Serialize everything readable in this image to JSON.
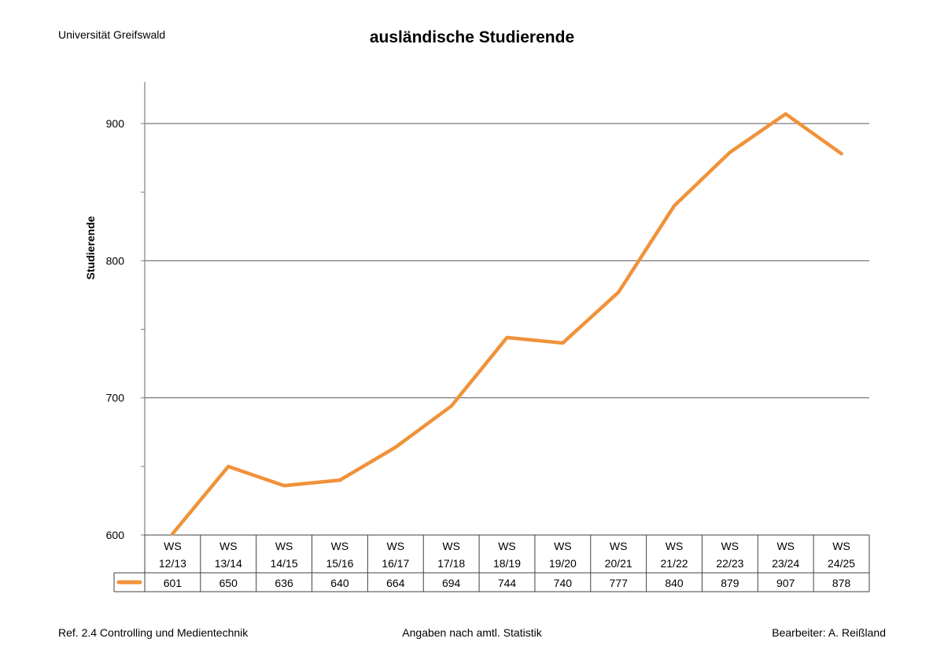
{
  "header": {
    "institution": "Universität Greifswald"
  },
  "chart_data": {
    "type": "line",
    "title": "ausländische Studierende",
    "ylabel": "Studierende",
    "xlabel": "",
    "ylim": [
      600,
      930
    ],
    "yticks": [
      600,
      700,
      800,
      900
    ],
    "grid": true,
    "legend_placement": "data-table",
    "categories": [
      [
        "WS",
        "12/13"
      ],
      [
        "WS",
        "13/14"
      ],
      [
        "WS",
        "14/15"
      ],
      [
        "WS",
        "15/16"
      ],
      [
        "WS",
        "16/17"
      ],
      [
        "WS",
        "17/18"
      ],
      [
        "WS",
        "18/19"
      ],
      [
        "WS",
        "19/20"
      ],
      [
        "WS",
        "20/21"
      ],
      [
        "WS",
        "21/22"
      ],
      [
        "WS",
        "22/23"
      ],
      [
        "WS",
        "23/24"
      ],
      [
        "WS",
        "24/25"
      ]
    ],
    "series": [
      {
        "values": [
          601,
          650,
          636,
          640,
          664,
          694,
          744,
          740,
          777,
          840,
          879,
          907,
          878
        ],
        "color": "#F0923A"
      }
    ]
  },
  "footer": {
    "left": "Ref. 2.4 Controlling und Medientechnik",
    "center": "Angaben nach amtl. Statistik",
    "right": "Bearbeiter: A. Reißland"
  },
  "colors": {
    "line": "#F0923A",
    "grid": "#595959",
    "axis": "#7f7f7f"
  }
}
